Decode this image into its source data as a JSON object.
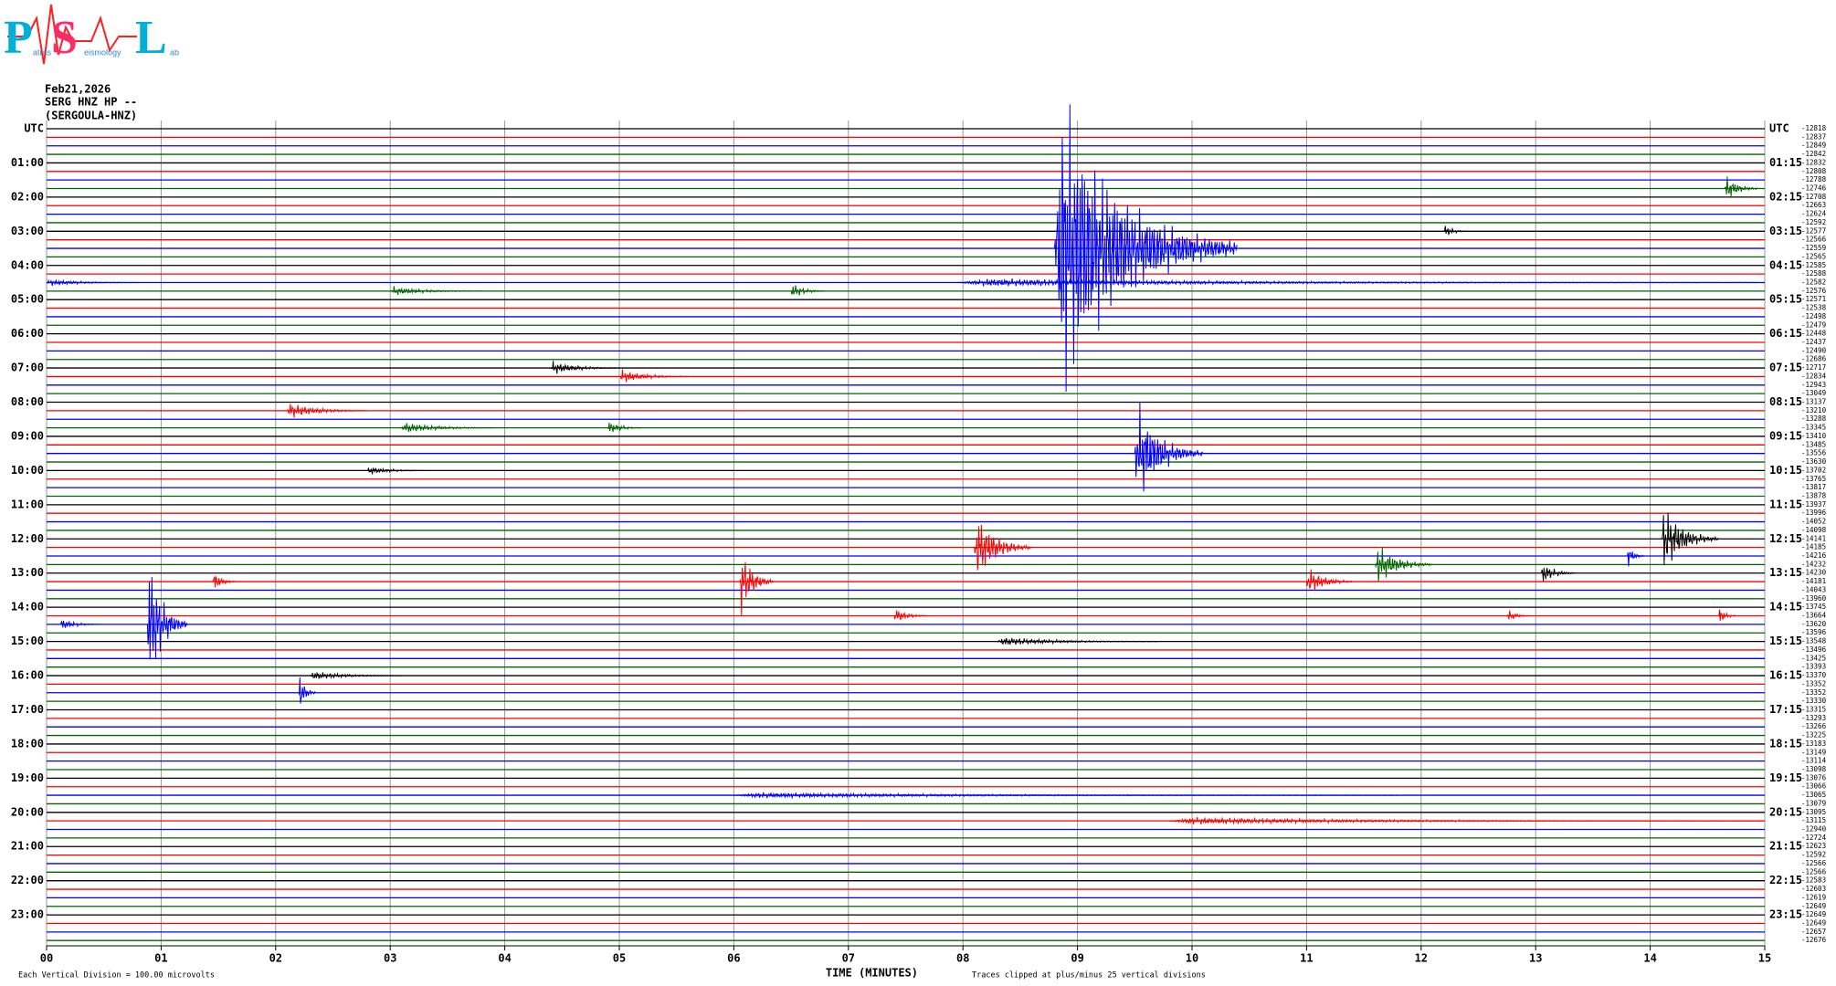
{
  "logo": {
    "letters": [
      "P",
      "S",
      "L"
    ],
    "words": [
      "atras",
      "eismology",
      "ab"
    ]
  },
  "chart_data": {
    "type": "helicorder",
    "title_lines": [
      "Feb21,2026",
      "SERG HNZ HP --",
      "(SERGOULA-HNZ)"
    ],
    "x_label": "TIME (MINUTES)",
    "scale_note": "Each Vertical Division =  100.00 microvolts",
    "clip_note": "Traces clipped at plus/minus 25 vertical divisions",
    "xlim": [
      0,
      15
    ],
    "xticks": [
      {
        "value": 0,
        "label": "00"
      },
      {
        "value": 1,
        "label": "01"
      },
      {
        "value": 2,
        "label": "02"
      },
      {
        "value": 3,
        "label": "03"
      },
      {
        "value": 4,
        "label": "04"
      },
      {
        "value": 5,
        "label": "05"
      },
      {
        "value": 6,
        "label": "06"
      },
      {
        "value": 7,
        "label": "07"
      },
      {
        "value": 8,
        "label": "08"
      },
      {
        "value": 9,
        "label": "09"
      },
      {
        "value": 10,
        "label": "10"
      },
      {
        "value": 11,
        "label": "11"
      },
      {
        "value": 12,
        "label": "12"
      },
      {
        "value": 13,
        "label": "13"
      },
      {
        "value": 14,
        "label": "14"
      },
      {
        "value": 15,
        "label": "15"
      }
    ],
    "grid": true,
    "trace_colors": [
      "#000000",
      "#ff0000",
      "#0000ff",
      "#006400"
    ],
    "left_labels": [
      "UTC",
      "01:00",
      "02:00",
      "03:00",
      "04:00",
      "05:00",
      "06:00",
      "07:00",
      "08:00",
      "09:00",
      "10:00",
      "11:00",
      "12:00",
      "13:00",
      "14:00",
      "15:00",
      "16:00",
      "17:00",
      "18:00",
      "19:00",
      "20:00",
      "21:00",
      "22:00",
      "23:00"
    ],
    "right_labels": [
      "UTC",
      "01:15",
      "02:15",
      "03:15",
      "04:15",
      "05:15",
      "06:15",
      "07:15",
      "08:15",
      "09:15",
      "10:15",
      "11:15",
      "12:15",
      "13:15",
      "14:15",
      "15:15",
      "16:15",
      "17:15",
      "18:15",
      "19:15",
      "20:15",
      "21:15",
      "22:15",
      "23:15"
    ],
    "trace_offsets": [
      -12818,
      -12837,
      -12849,
      -12842,
      -12832,
      -12808,
      -12788,
      -12746,
      -12708,
      -12663,
      -12624,
      -12592,
      -12577,
      -12566,
      -12559,
      -12565,
      -12585,
      -12588,
      -12582,
      -12576,
      -12571,
      -12538,
      -12498,
      -12479,
      -12448,
      -12437,
      -12490,
      -12686,
      -12717,
      -12834,
      -12943,
      -13049,
      -13137,
      -13210,
      -13288,
      -13345,
      -13410,
      -13485,
      -13556,
      -13630,
      -13702,
      -13765,
      -13817,
      -13878,
      -13937,
      -13996,
      -14052,
      -14098,
      -14141,
      -14185,
      -14216,
      -14232,
      -14230,
      -14181,
      -14043,
      -13960,
      -13745,
      -13664,
      -13620,
      -13596,
      -13548,
      -13496,
      -13425,
      -13393,
      -13370,
      -13352,
      -13352,
      -13330,
      -13315,
      -13293,
      -13266,
      -13225,
      -13183,
      -13149,
      -13114,
      -13098,
      -13076,
      -13066,
      -13065,
      -13079,
      -13095,
      -13115,
      -12940,
      -12724,
      -12623,
      -12592,
      -12566,
      -12566,
      -12583,
      -12603,
      -12619,
      -12649,
      -12649,
      -12649,
      -12657,
      -12676
    ],
    "events": [
      {
        "trace": 14,
        "start": 8.8,
        "duration": 1.6,
        "amplitude": 13
      },
      {
        "trace": 18,
        "start": 7.95,
        "duration": 7.05,
        "amplitude": 0.35
      },
      {
        "trace": 18,
        "start": 0,
        "duration": 0.8,
        "amplitude": 0.3
      },
      {
        "trace": 7,
        "start": 14.65,
        "duration": 0.3,
        "amplitude": 1.2
      },
      {
        "trace": 12,
        "start": 12.2,
        "duration": 0.2,
        "amplitude": 0.6
      },
      {
        "trace": 19,
        "start": 3.0,
        "duration": 0.8,
        "amplitude": 0.4
      },
      {
        "trace": 19,
        "start": 6.5,
        "duration": 0.3,
        "amplitude": 0.7
      },
      {
        "trace": 28,
        "start": 4.4,
        "duration": 0.6,
        "amplitude": 0.6
      },
      {
        "trace": 29,
        "start": 5.0,
        "duration": 0.6,
        "amplitude": 0.6
      },
      {
        "trace": 33,
        "start": 2.1,
        "duration": 0.7,
        "amplitude": 0.7
      },
      {
        "trace": 35,
        "start": 3.1,
        "duration": 0.8,
        "amplitude": 0.5
      },
      {
        "trace": 35,
        "start": 4.9,
        "duration": 0.3,
        "amplitude": 0.6
      },
      {
        "trace": 38,
        "start": 9.5,
        "duration": 0.6,
        "amplitude": 4.5
      },
      {
        "trace": 40,
        "start": 2.8,
        "duration": 0.5,
        "amplitude": 0.4
      },
      {
        "trace": 48,
        "start": 14.1,
        "duration": 0.5,
        "amplitude": 3
      },
      {
        "trace": 49,
        "start": 8.1,
        "duration": 0.5,
        "amplitude": 3
      },
      {
        "trace": 50,
        "start": 13.8,
        "duration": 0.15,
        "amplitude": 1
      },
      {
        "trace": 51,
        "start": 11.6,
        "duration": 0.5,
        "amplitude": 1.8
      },
      {
        "trace": 52,
        "start": 13.05,
        "duration": 0.3,
        "amplitude": 1
      },
      {
        "trace": 53,
        "start": 1.45,
        "duration": 0.2,
        "amplitude": 1
      },
      {
        "trace": 53,
        "start": 6.05,
        "duration": 0.3,
        "amplitude": 3
      },
      {
        "trace": 53,
        "start": 11.0,
        "duration": 0.4,
        "amplitude": 1.3
      },
      {
        "trace": 57,
        "start": 7.4,
        "duration": 0.3,
        "amplitude": 0.7
      },
      {
        "trace": 57,
        "start": 12.75,
        "duration": 0.2,
        "amplitude": 0.6
      },
      {
        "trace": 57,
        "start": 14.6,
        "duration": 0.15,
        "amplitude": 0.8
      },
      {
        "trace": 58,
        "start": 0.88,
        "duration": 0.35,
        "amplitude": 6
      },
      {
        "trace": 58,
        "start": 0.12,
        "duration": 0.35,
        "amplitude": 0.5
      },
      {
        "trace": 60,
        "start": 8.3,
        "duration": 1.4,
        "amplitude": 0.4
      },
      {
        "trace": 64,
        "start": 2.3,
        "duration": 0.8,
        "amplitude": 0.4
      },
      {
        "trace": 66,
        "start": 2.2,
        "duration": 0.15,
        "amplitude": 1.8
      },
      {
        "trace": 78,
        "start": 6.0,
        "duration": 5.8,
        "amplitude": 0.25
      },
      {
        "trace": 81,
        "start": 9.8,
        "duration": 5.2,
        "amplitude": 0.3
      }
    ]
  }
}
